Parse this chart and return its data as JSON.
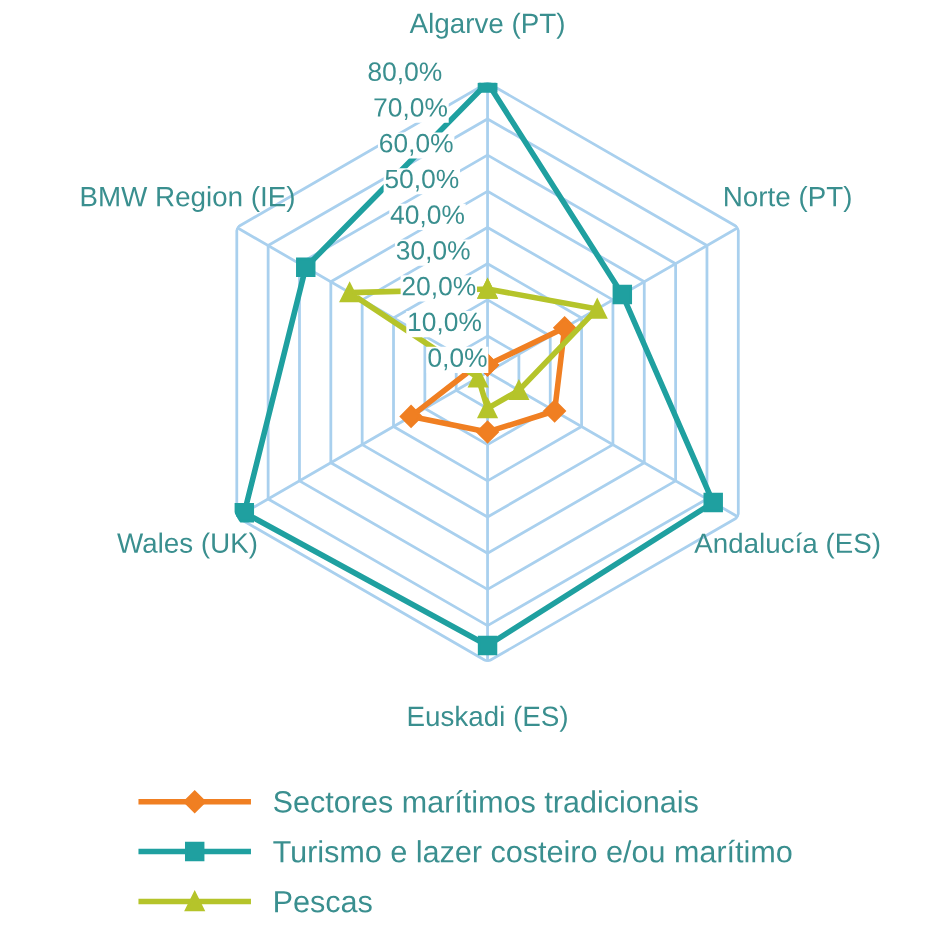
{
  "chart_data": {
    "type": "radar",
    "categories": [
      "Algarve (PT)",
      "Norte (PT)",
      "Andalucía (ES)",
      "Euskadi (ES)",
      "Wales (UK)",
      "BMW Region (IE)"
    ],
    "ylim": [
      0,
      80
    ],
    "yticks": [
      {
        "value": 0,
        "label": "0,0%"
      },
      {
        "value": 10,
        "label": "10,0%"
      },
      {
        "value": 20,
        "label": "20,0%"
      },
      {
        "value": 30,
        "label": "30,0%"
      },
      {
        "value": 40,
        "label": "40,0%"
      },
      {
        "value": 50,
        "label": "50,0%"
      },
      {
        "value": 60,
        "label": "60,0%"
      },
      {
        "value": 70,
        "label": "70,0%"
      },
      {
        "value": 80,
        "label": "80,0%"
      }
    ],
    "grid": true,
    "legend": "bottom",
    "series": [
      {
        "name": "Sectores marítimos tradicionais",
        "color": "#f07f22",
        "marker": "diamond",
        "values": [
          2,
          24.6,
          21.4,
          16.5,
          24.4,
          3.6
        ]
      },
      {
        "name": "Turismo e lazer costeiro e/ou marítimo",
        "color": "#1fa0a0",
        "marker": "square",
        "values": [
          80,
          43,
          72,
          75.5,
          77.6,
          58
        ]
      },
      {
        "name": "Pescas",
        "color": "#b5c42a",
        "marker": "triangle",
        "values": [
          23,
          35,
          10,
          10,
          3,
          44
        ]
      }
    ]
  }
}
